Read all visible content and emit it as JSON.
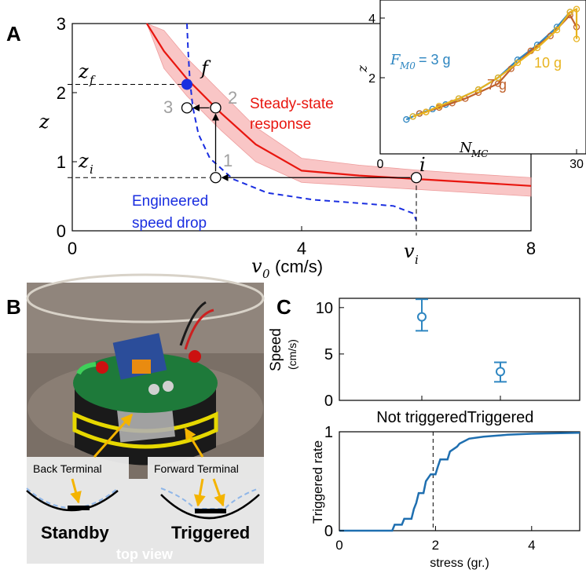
{
  "panels": {
    "a": {
      "letter": "A"
    },
    "b": {
      "letter": "B"
    },
    "c": {
      "letter": "C"
    }
  },
  "panel_a": {
    "annotations": {
      "zf": "z",
      "zf_sub": "f",
      "zi": "z",
      "zi_sub": "i",
      "f": "f",
      "i": "i",
      "vi": "v",
      "vi_sub": "i",
      "p1": "1",
      "p2": "2",
      "p3": "3",
      "steady1": "Steady-state",
      "steady2": "response",
      "eng1": "Engineered",
      "eng2": "speed drop"
    },
    "colors": {
      "steady": "#e8160f",
      "band": "#f5a6a6",
      "engineered": "#1a2ee0",
      "arrows": "#000000",
      "state_labels": "#a0a0a0"
    }
  },
  "photo": {
    "labels": {
      "back_terminal": "Back Terminal",
      "forward_terminal": "Forward Terminal",
      "standby": "Standby",
      "triggered": "Triggered",
      "top_view": "top view"
    }
  },
  "chart_data": [
    {
      "type": "line",
      "id": "A-main",
      "xlabel_var": "v",
      "xlabel_sub": "0",
      "xlabel_unit": "(cm/s)",
      "ylabel": "z",
      "xlim": [
        0,
        8
      ],
      "ylim": [
        0,
        3
      ],
      "xticks": [
        "0",
        "4",
        "8"
      ],
      "yticks": [
        "0",
        "1",
        "2",
        "3"
      ],
      "series": [
        {
          "x": [
            1.3,
            1.6,
            2.0,
            2.6,
            3.2,
            4.0,
            5.0,
            6.0,
            7.0,
            8.0
          ],
          "y": [
            3.0,
            2.6,
            2.2,
            1.7,
            1.25,
            0.87,
            0.8,
            0.75,
            0.7,
            0.65
          ]
        },
        {
          "x": [
            1.3,
            1.6,
            2.0,
            2.6,
            3.2,
            4.0,
            5.0,
            6.0,
            7.0,
            8.0
          ],
          "y": [
            3.0,
            2.9,
            2.5,
            2.0,
            1.5,
            1.05,
            0.95,
            0.88,
            0.82,
            0.77
          ]
        },
        {
          "x": [
            1.3,
            1.6,
            2.0,
            2.6,
            3.2,
            4.0,
            5.0,
            6.0,
            7.0,
            8.0
          ],
          "y": [
            3.0,
            2.35,
            1.95,
            1.45,
            1.0,
            0.7,
            0.65,
            0.6,
            0.55,
            0.5
          ]
        },
        {
          "x": [
            2.0,
            2.02,
            2.05,
            2.1,
            2.2,
            2.4,
            2.8,
            3.4,
            4.2,
            5.0,
            5.6,
            5.95,
            6.0
          ],
          "y": [
            3.0,
            2.6,
            2.2,
            1.8,
            1.4,
            1.05,
            0.75,
            0.55,
            0.45,
            0.4,
            0.36,
            0.25,
            0.15
          ]
        }
      ],
      "points": [
        {
          "label": "i",
          "x": 6.0,
          "y": 0.77
        },
        {
          "label": "1",
          "x": 2.5,
          "y": 0.77
        },
        {
          "label": "2",
          "x": 2.5,
          "y": 1.78
        },
        {
          "label": "3",
          "x": 2.0,
          "y": 1.78
        },
        {
          "label": "f",
          "x": 2.0,
          "y": 2.12
        }
      ]
    },
    {
      "type": "line",
      "id": "A-inset",
      "xlabel_var": "N",
      "xlabel_sub": "MC",
      "ylabel": "z",
      "xlim": [
        0,
        30
      ],
      "ylim": [
        0,
        4.5
      ],
      "xticks": [
        "0",
        "30"
      ],
      "yticks": [
        "2",
        "4"
      ],
      "series": [
        {
          "name": "3 g",
          "legend_var": "F",
          "legend_sub": "M0",
          "legend_eq": "= 3 g",
          "color": "#2e86c1",
          "x": [
            4,
            5,
            6,
            8,
            10,
            12,
            15,
            18,
            21,
            24,
            27,
            29
          ],
          "y": [
            0.6,
            0.7,
            0.8,
            0.95,
            1.1,
            1.3,
            1.6,
            2.0,
            2.6,
            3.1,
            3.7,
            4.2
          ]
        },
        {
          "name": "7 g",
          "legend_eq": "7 g",
          "color": "#c0612b",
          "x": [
            6,
            7,
            9,
            11,
            13,
            15,
            18,
            20,
            23,
            26,
            29,
            30
          ],
          "y": [
            0.8,
            0.85,
            1.0,
            1.15,
            1.3,
            1.5,
            1.8,
            2.3,
            2.9,
            3.4,
            4.1,
            3.7
          ]
        },
        {
          "name": "10 g",
          "legend_eq": "10 g",
          "color": "#e8b31e",
          "x": [
            5,
            7,
            9,
            12,
            15,
            18,
            21,
            24,
            27,
            29,
            30,
            30
          ],
          "y": [
            0.7,
            0.85,
            1.05,
            1.3,
            1.6,
            2.0,
            2.5,
            3.0,
            3.6,
            4.2,
            4.3,
            3.3
          ]
        }
      ]
    },
    {
      "type": "scatter",
      "id": "C-top",
      "ylabel": "Speed",
      "ylabel_unit": "(cm/s)",
      "categories": [
        "Not triggered",
        "Triggered"
      ],
      "yticks": [
        "0",
        "5",
        "10"
      ],
      "ylim": [
        0,
        11
      ],
      "color": "#2e86c1",
      "series": [
        {
          "values": [
            9.0,
            3.1
          ],
          "err_low": [
            7.5,
            2.0
          ],
          "err_high": [
            10.9,
            4.1
          ]
        }
      ]
    },
    {
      "type": "line",
      "id": "C-bottom",
      "xlabel": "stress (gr.)",
      "ylabel": "Triggered rate",
      "xlim": [
        0,
        5
      ],
      "ylim": [
        0,
        1
      ],
      "xticks": [
        "0",
        "2",
        "4"
      ],
      "yticks": [
        "0",
        "1"
      ],
      "vline": 1.95,
      "color": "#1f6fb0",
      "series": [
        {
          "x": [
            0,
            1.1,
            1.15,
            1.3,
            1.35,
            1.5,
            1.55,
            1.6,
            1.65,
            1.75,
            1.8,
            1.9,
            2.0,
            2.05,
            2.1,
            2.25,
            2.3,
            2.45,
            2.5,
            2.7,
            3.0,
            3.5,
            4.0,
            5.0
          ],
          "y": [
            0,
            0,
            0.06,
            0.06,
            0.12,
            0.12,
            0.22,
            0.28,
            0.38,
            0.38,
            0.5,
            0.57,
            0.57,
            0.65,
            0.72,
            0.72,
            0.8,
            0.85,
            0.88,
            0.93,
            0.95,
            0.97,
            0.98,
            0.99
          ]
        }
      ]
    }
  ]
}
